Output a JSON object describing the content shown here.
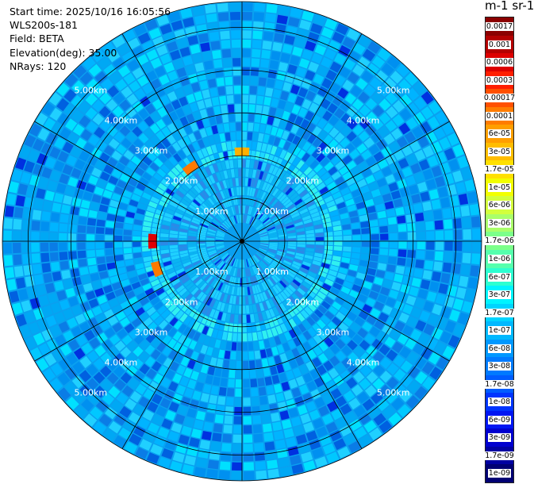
{
  "info": {
    "start_time": "Start time: 2025/10/16 16:05:56",
    "instrument": "WLS200s-181",
    "field": "Field: BETA",
    "elevation": "Elevation(deg): 35.00",
    "nrays": "NRays: 120"
  },
  "colorbar": {
    "unit_label": "m-1 sr-1",
    "labels": [
      "0.0017",
      "0.001",
      "0.0006",
      "0.0003",
      "0.00017",
      "0.0001",
      "6e-05",
      "3e-05",
      "1.7e-05",
      "1e-05",
      "6e-06",
      "3e-06",
      "1.7e-06",
      "1e-06",
      "6e-07",
      "3e-07",
      "1.7e-07",
      "1e-07",
      "6e-08",
      "3e-08",
      "1.7e-08",
      "1e-08",
      "6e-09",
      "3e-09",
      "1.7e-09",
      "1e-09"
    ],
    "colors": [
      "#8b0000",
      "#b40000",
      "#dd0000",
      "#ff1e00",
      "#ff5000",
      "#ff7c00",
      "#ff9e00",
      "#ffbd00",
      "#ffe000",
      "#f2ff00",
      "#d3ff3c",
      "#a9ff6a",
      "#7cff8a",
      "#55ffad",
      "#2cffd0",
      "#00f4ff",
      "#00d4ff",
      "#00b8ff",
      "#0098ff",
      "#007aff",
      "#005cff",
      "#0034ff",
      "#0016f2",
      "#0000cf",
      "#0000a2",
      "#000073"
    ]
  },
  "chart_data": {
    "type": "heatmap",
    "projection": "polar PPI",
    "rays": 120,
    "max_range_km": 5.6,
    "range_rings_km": [
      1.0,
      2.0,
      3.0,
      4.0,
      5.0
    ],
    "ring_labels": [
      "1.00km",
      "2.00km",
      "3.00km",
      "4.00km",
      "5.00km"
    ],
    "azimuth_lines_deg": [
      0,
      30,
      60,
      90,
      120,
      150,
      180,
      210,
      240,
      270,
      300,
      330
    ],
    "dominant_value_range": "3e-08 to 1e-07",
    "hotspots": [
      {
        "range_km": 2.1,
        "azimuth_deg": 0,
        "value": "3e-05"
      },
      {
        "range_km": 2.1,
        "azimuth_deg": 325,
        "value": "6e-05"
      },
      {
        "range_km": 2.1,
        "azimuth_deg": 270,
        "value": "0.0001"
      },
      {
        "range_km": 2.1,
        "azimuth_deg": 252,
        "value": "6e-05"
      }
    ]
  }
}
